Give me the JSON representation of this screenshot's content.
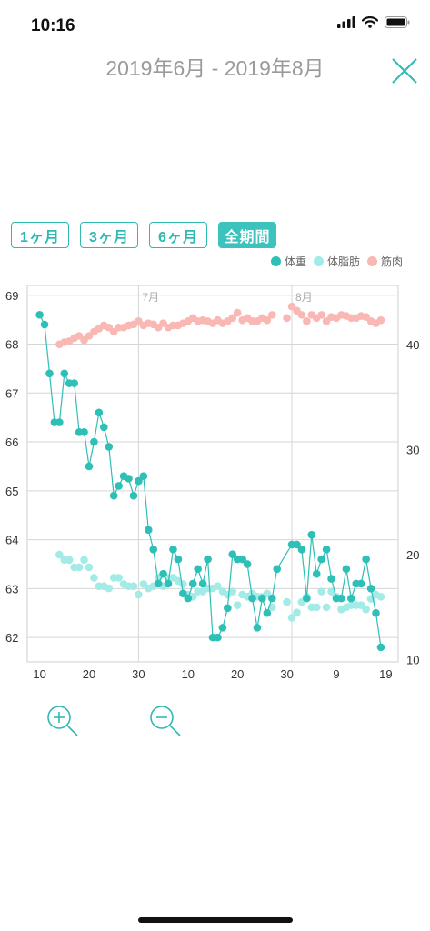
{
  "status_bar": {
    "time": "10:16"
  },
  "header": {
    "title": "2019年6月 - 2019年8月"
  },
  "periods": [
    {
      "label": "1ヶ月",
      "active": false
    },
    {
      "label": "3ヶ月",
      "active": false
    },
    {
      "label": "6ヶ月",
      "active": false
    },
    {
      "label": "全期間",
      "active": true
    }
  ],
  "colors": {
    "weight": "#2ebfb6",
    "body_fat": "#a2ebe6",
    "muscle": "#f9b8b3",
    "accent": "#2fb9b3"
  },
  "icons": {
    "close": "close-icon",
    "zoom_in": "zoom-in-icon",
    "zoom_out": "zoom-out-icon"
  },
  "chart_data": {
    "type": "line",
    "grid": true,
    "legend_position": "top-right",
    "month_labels": [
      {
        "label": "7月",
        "x": 30
      },
      {
        "label": "8月",
        "x": 61
      }
    ],
    "x_ticks": [
      {
        "label": "10",
        "x": 10
      },
      {
        "label": "20",
        "x": 20
      },
      {
        "label": "30",
        "x": 30
      },
      {
        "label": "10",
        "x": 40
      },
      {
        "label": "20",
        "x": 50
      },
      {
        "label": "30",
        "x": 60
      },
      {
        "label": "9",
        "x": 70
      },
      {
        "label": "19",
        "x": 80
      }
    ],
    "xlim": [
      7.5,
      82.5
    ],
    "left_axis": {
      "ticks": [
        62,
        63,
        64,
        65,
        66,
        67,
        68,
        69
      ],
      "lim": [
        61.5,
        69.2
      ]
    },
    "right_axis": {
      "ticks": [
        10,
        20,
        30,
        40
      ],
      "lim": [
        9.8,
        45.6
      ]
    },
    "series": [
      {
        "name": "体重",
        "axis": "left",
        "line": true,
        "points": [
          [
            10,
            68.6
          ],
          [
            11,
            68.4
          ],
          [
            12,
            67.4
          ],
          [
            13,
            66.4
          ],
          [
            14,
            66.4
          ],
          [
            15,
            67.4
          ],
          [
            16,
            67.2
          ],
          [
            17,
            67.2
          ],
          [
            18,
            66.2
          ],
          [
            19,
            66.2
          ],
          [
            20,
            65.5
          ],
          [
            21,
            66.0
          ],
          [
            22,
            66.6
          ],
          [
            23,
            66.3
          ],
          [
            24,
            65.9
          ],
          [
            25,
            64.9
          ],
          [
            26,
            65.1
          ],
          [
            27,
            65.3
          ],
          [
            28,
            65.25
          ],
          [
            29,
            64.9
          ],
          [
            30,
            65.2
          ],
          [
            31,
            65.3
          ],
          [
            32,
            64.2
          ],
          [
            33,
            63.8
          ],
          [
            34,
            63.1
          ],
          [
            35,
            63.3
          ],
          [
            36,
            63.1
          ],
          [
            37,
            63.8
          ],
          [
            38,
            63.6
          ],
          [
            39,
            62.9
          ],
          [
            40,
            62.8
          ],
          [
            41,
            63.1
          ],
          [
            42,
            63.4
          ],
          [
            43,
            63.1
          ],
          [
            44,
            63.6
          ],
          [
            45,
            62.0
          ],
          [
            46,
            62.0
          ],
          [
            47,
            62.2
          ],
          [
            48,
            62.6
          ],
          [
            49,
            63.7
          ],
          [
            50,
            63.6
          ],
          [
            51,
            63.6
          ],
          [
            52,
            63.5
          ],
          [
            53,
            62.8
          ],
          [
            54,
            62.2
          ],
          [
            55,
            62.8
          ],
          [
            56,
            62.5
          ],
          [
            57,
            62.8
          ],
          [
            58,
            63.4
          ],
          [
            61,
            63.9
          ],
          [
            62,
            63.9
          ],
          [
            63,
            63.8
          ],
          [
            64,
            62.8
          ],
          [
            65,
            64.1
          ],
          [
            66,
            63.3
          ],
          [
            67,
            63.6
          ],
          [
            68,
            63.8
          ],
          [
            69,
            63.2
          ],
          [
            70,
            62.8
          ],
          [
            71,
            62.8
          ],
          [
            72,
            63.4
          ],
          [
            73,
            62.8
          ],
          [
            74,
            63.1
          ],
          [
            75,
            63.1
          ],
          [
            76,
            63.6
          ],
          [
            77,
            63.0
          ],
          [
            78,
            62.5
          ],
          [
            79,
            61.8
          ]
        ]
      },
      {
        "name": "体脂肪",
        "axis": "right",
        "line": false,
        "points": [
          [
            14,
            20.0
          ],
          [
            15,
            19.5
          ],
          [
            16,
            19.5
          ],
          [
            17,
            18.8
          ],
          [
            18,
            18.8
          ],
          [
            19,
            19.5
          ],
          [
            20,
            18.8
          ],
          [
            21,
            17.8
          ],
          [
            22,
            17.0
          ],
          [
            23,
            17.0
          ],
          [
            24,
            16.8
          ],
          [
            25,
            17.8
          ],
          [
            26,
            17.8
          ],
          [
            27,
            17.2
          ],
          [
            28,
            17.0
          ],
          [
            29,
            17.0
          ],
          [
            30,
            16.2
          ],
          [
            31,
            17.2
          ],
          [
            32,
            16.8
          ],
          [
            33,
            17.0
          ],
          [
            34,
            17.8
          ],
          [
            35,
            17.0
          ],
          [
            36,
            17.8
          ],
          [
            37,
            17.8
          ],
          [
            38,
            17.5
          ],
          [
            39,
            17.2
          ],
          [
            40,
            16.2
          ],
          [
            41,
            16.0
          ],
          [
            42,
            16.5
          ],
          [
            43,
            16.5
          ],
          [
            44,
            16.8
          ],
          [
            45,
            16.8
          ],
          [
            46,
            17.0
          ],
          [
            47,
            16.5
          ],
          [
            48,
            16.2
          ],
          [
            49,
            16.5
          ],
          [
            50,
            15.2
          ],
          [
            51,
            16.2
          ],
          [
            52,
            16.0
          ],
          [
            53,
            16.3
          ],
          [
            54,
            16.0
          ],
          [
            55,
            16.0
          ],
          [
            56,
            16.3
          ],
          [
            57,
            15.0
          ],
          [
            60,
            15.5
          ],
          [
            61,
            14.0
          ],
          [
            62,
            14.5
          ],
          [
            63,
            15.5
          ],
          [
            64,
            16.0
          ],
          [
            65,
            15.0
          ],
          [
            66,
            15.0
          ],
          [
            67,
            16.5
          ],
          [
            68,
            15.0
          ],
          [
            69,
            16.5
          ],
          [
            70,
            16.0
          ],
          [
            71,
            14.8
          ],
          [
            72,
            15.0
          ],
          [
            73,
            15.2
          ],
          [
            74,
            15.2
          ],
          [
            75,
            15.2
          ],
          [
            76,
            14.8
          ],
          [
            77,
            15.8
          ],
          [
            78,
            16.2
          ],
          [
            79,
            16.0
          ]
        ]
      },
      {
        "name": "筋肉",
        "axis": "right",
        "line": false,
        "points": [
          [
            14,
            40.0
          ],
          [
            15,
            40.2
          ],
          [
            16,
            40.3
          ],
          [
            17,
            40.6
          ],
          [
            18,
            40.8
          ],
          [
            19,
            40.4
          ],
          [
            20,
            40.8
          ],
          [
            21,
            41.2
          ],
          [
            22,
            41.5
          ],
          [
            23,
            41.8
          ],
          [
            24,
            41.6
          ],
          [
            25,
            41.2
          ],
          [
            26,
            41.6
          ],
          [
            27,
            41.6
          ],
          [
            28,
            41.8
          ],
          [
            29,
            41.9
          ],
          [
            30,
            42.2
          ],
          [
            31,
            41.8
          ],
          [
            32,
            42.0
          ],
          [
            33,
            41.9
          ],
          [
            34,
            41.6
          ],
          [
            35,
            42.0
          ],
          [
            36,
            41.6
          ],
          [
            37,
            41.8
          ],
          [
            38,
            41.8
          ],
          [
            39,
            42.0
          ],
          [
            40,
            42.2
          ],
          [
            41,
            42.5
          ],
          [
            42,
            42.2
          ],
          [
            43,
            42.3
          ],
          [
            44,
            42.2
          ],
          [
            45,
            42.0
          ],
          [
            46,
            42.3
          ],
          [
            47,
            42.0
          ],
          [
            48,
            42.2
          ],
          [
            49,
            42.5
          ],
          [
            50,
            43.0
          ],
          [
            51,
            42.3
          ],
          [
            52,
            42.5
          ],
          [
            53,
            42.2
          ],
          [
            54,
            42.2
          ],
          [
            55,
            42.5
          ],
          [
            56,
            42.3
          ],
          [
            57,
            42.8
          ],
          [
            60,
            42.5
          ],
          [
            61,
            43.6
          ],
          [
            62,
            43.2
          ],
          [
            63,
            42.8
          ],
          [
            64,
            42.2
          ],
          [
            65,
            42.8
          ],
          [
            66,
            42.5
          ],
          [
            67,
            42.8
          ],
          [
            68,
            42.2
          ],
          [
            69,
            42.6
          ],
          [
            70,
            42.5
          ],
          [
            71,
            42.8
          ],
          [
            72,
            42.7
          ],
          [
            73,
            42.5
          ],
          [
            74,
            42.5
          ],
          [
            75,
            42.7
          ],
          [
            76,
            42.6
          ],
          [
            77,
            42.2
          ],
          [
            78,
            42.0
          ],
          [
            79,
            42.3
          ]
        ]
      }
    ]
  }
}
